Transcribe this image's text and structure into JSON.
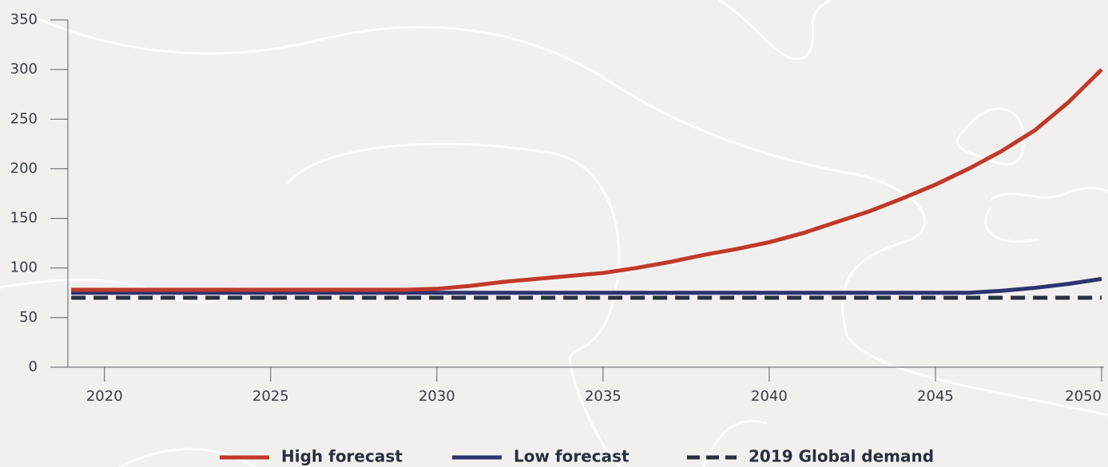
{
  "chart_data": {
    "type": "line",
    "x": [
      2019,
      2020,
      2021,
      2022,
      2023,
      2024,
      2025,
      2026,
      2027,
      2028,
      2029,
      2030,
      2031,
      2032,
      2033,
      2034,
      2035,
      2036,
      2037,
      2038,
      2039,
      2040,
      2041,
      2042,
      2043,
      2044,
      2045,
      2046,
      2047,
      2048,
      2049,
      2050
    ],
    "series": [
      {
        "name": "High forecast",
        "color": "#c0392b",
        "style": "solid",
        "values": [
          78,
          78,
          78,
          78,
          78,
          78,
          78,
          78,
          78,
          78,
          78,
          79,
          82,
          86,
          89,
          92,
          95,
          100,
          106,
          113,
          119,
          126,
          135,
          146,
          157,
          170,
          184,
          200,
          218,
          239,
          267,
          300
        ]
      },
      {
        "name": "Low forecast",
        "color": "#2e3370",
        "style": "solid",
        "values": [
          75,
          75,
          75,
          75,
          75,
          75,
          75,
          75,
          75,
          75,
          75,
          75,
          75,
          75,
          75,
          75,
          75,
          75,
          75,
          75,
          75,
          75,
          75,
          75,
          75,
          75,
          75,
          75,
          77,
          80,
          84,
          89
        ]
      },
      {
        "name": "2019 Global demand",
        "color": "#2a2f3e",
        "style": "dashed",
        "values": [
          70,
          70,
          70,
          70,
          70,
          70,
          70,
          70,
          70,
          70,
          70,
          70,
          70,
          70,
          70,
          70,
          70,
          70,
          70,
          70,
          70,
          70,
          70,
          70,
          70,
          70,
          70,
          70,
          70,
          70,
          70,
          70
        ]
      }
    ],
    "xlim": [
      2018.9,
      2050
    ],
    "xticks": [
      2020,
      2025,
      2030,
      2035,
      2040,
      2045,
      2050
    ],
    "ylim": [
      0,
      350
    ],
    "yticks": [
      0,
      50,
      100,
      150,
      200,
      250,
      300,
      350
    ],
    "legend": "bottom"
  }
}
